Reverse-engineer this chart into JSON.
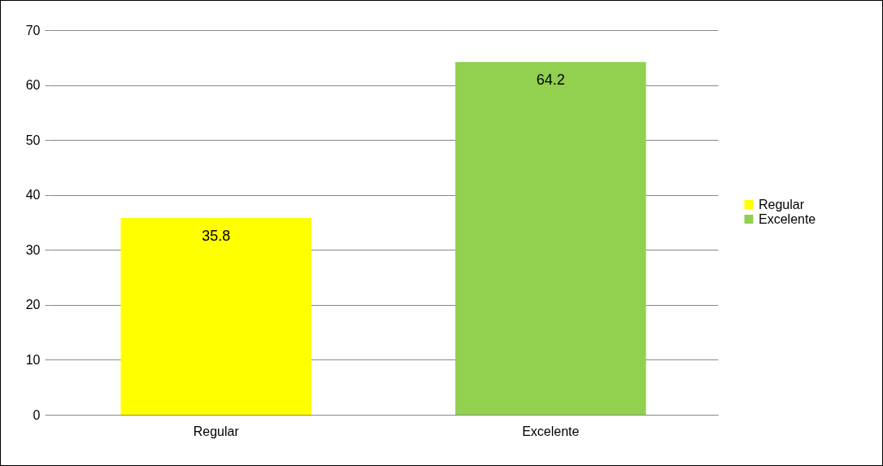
{
  "chart_data": {
    "type": "bar",
    "categories": [
      "Regular",
      "Excelente"
    ],
    "series": [
      {
        "name": "Regular",
        "color": "#ffff00",
        "values": [
          35.8,
          null
        ]
      },
      {
        "name": "Excelente",
        "color": "#92d050",
        "values": [
          null,
          64.2
        ]
      }
    ],
    "ylim": [
      0,
      70
    ],
    "yticks": [
      0,
      10,
      20,
      30,
      40,
      50,
      60,
      70
    ],
    "grid": "y",
    "legend": "right",
    "data_labels": true
  }
}
